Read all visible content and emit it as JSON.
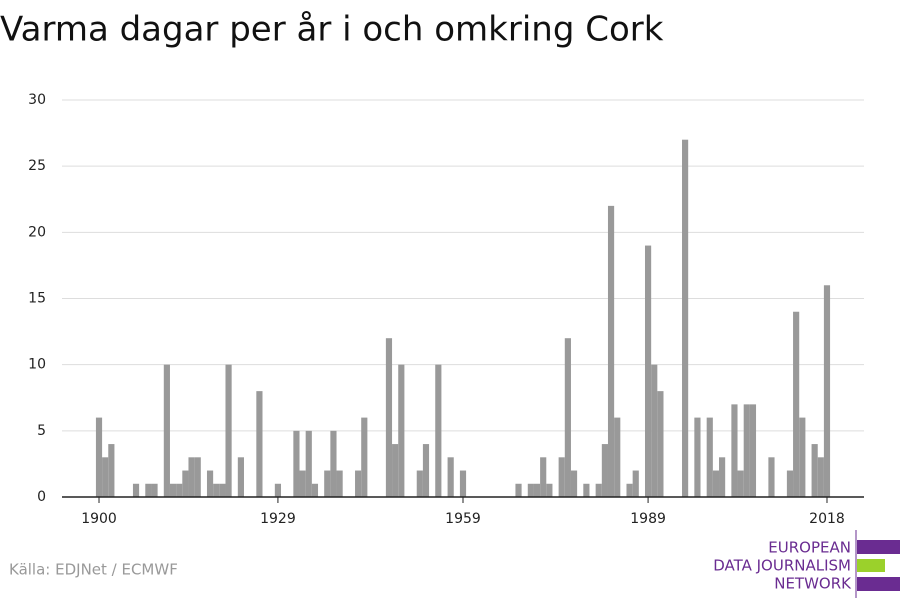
{
  "chart_data": {
    "type": "bar",
    "title": "Varma dagar per år i och omkring Cork",
    "source": "Källa: EDJNet / ECMWF",
    "logo": [
      "EUROPEAN",
      "DATA JOURNALISM",
      "NETWORK"
    ],
    "x": [
      1900,
      1901,
      1902,
      1903,
      1904,
      1905,
      1906,
      1907,
      1908,
      1909,
      1910,
      1911,
      1912,
      1913,
      1914,
      1915,
      1916,
      1917,
      1918,
      1919,
      1920,
      1921,
      1922,
      1923,
      1924,
      1925,
      1926,
      1927,
      1928,
      1929,
      1930,
      1931,
      1932,
      1933,
      1934,
      1935,
      1936,
      1937,
      1938,
      1939,
      1940,
      1941,
      1942,
      1943,
      1944,
      1945,
      1946,
      1947,
      1948,
      1949,
      1950,
      1951,
      1952,
      1953,
      1954,
      1955,
      1956,
      1957,
      1958,
      1959,
      1960,
      1961,
      1962,
      1963,
      1964,
      1965,
      1966,
      1967,
      1968,
      1969,
      1970,
      1971,
      1972,
      1973,
      1974,
      1975,
      1976,
      1977,
      1978,
      1979,
      1980,
      1981,
      1982,
      1983,
      1984,
      1985,
      1986,
      1987,
      1988,
      1989,
      1990,
      1991,
      1992,
      1993,
      1994,
      1995,
      1996,
      1997,
      1998,
      1999,
      2000,
      2001,
      2002,
      2003,
      2004,
      2005,
      2006,
      2007,
      2008,
      2009,
      2010,
      2011,
      2012,
      2013,
      2014,
      2015,
      2016,
      2017,
      2018
    ],
    "values": [
      6,
      3,
      4,
      0,
      0,
      0,
      1,
      0,
      1,
      1,
      0,
      10,
      1,
      1,
      2,
      3,
      3,
      0,
      2,
      1,
      1,
      10,
      0,
      3,
      0,
      0,
      8,
      0,
      0,
      1,
      0,
      0,
      5,
      2,
      5,
      1,
      0,
      2,
      5,
      2,
      0,
      0,
      2,
      6,
      0,
      0,
      0,
      12,
      4,
      10,
      0,
      0,
      2,
      4,
      0,
      10,
      0,
      3,
      0,
      2,
      0,
      0,
      0,
      0,
      0,
      0,
      0,
      0,
      1,
      0,
      1,
      1,
      3,
      1,
      0,
      3,
      12,
      2,
      0,
      1,
      0,
      1,
      4,
      22,
      6,
      0,
      1,
      2,
      0,
      19,
      10,
      8,
      0,
      0,
      0,
      27,
      0,
      6,
      0,
      6,
      2,
      3,
      0,
      7,
      2,
      7,
      7,
      0,
      0,
      3,
      0,
      0,
      2,
      14,
      6,
      0,
      4,
      3,
      16
    ],
    "color": "#999999",
    "xlim": [
      1894,
      2024
    ],
    "xticks": [
      1900,
      1929,
      1959,
      1989,
      2018
    ],
    "ylim": [
      0,
      30
    ],
    "yticks": [
      0,
      5,
      10,
      15,
      20,
      25,
      30
    ],
    "grid": true
  }
}
